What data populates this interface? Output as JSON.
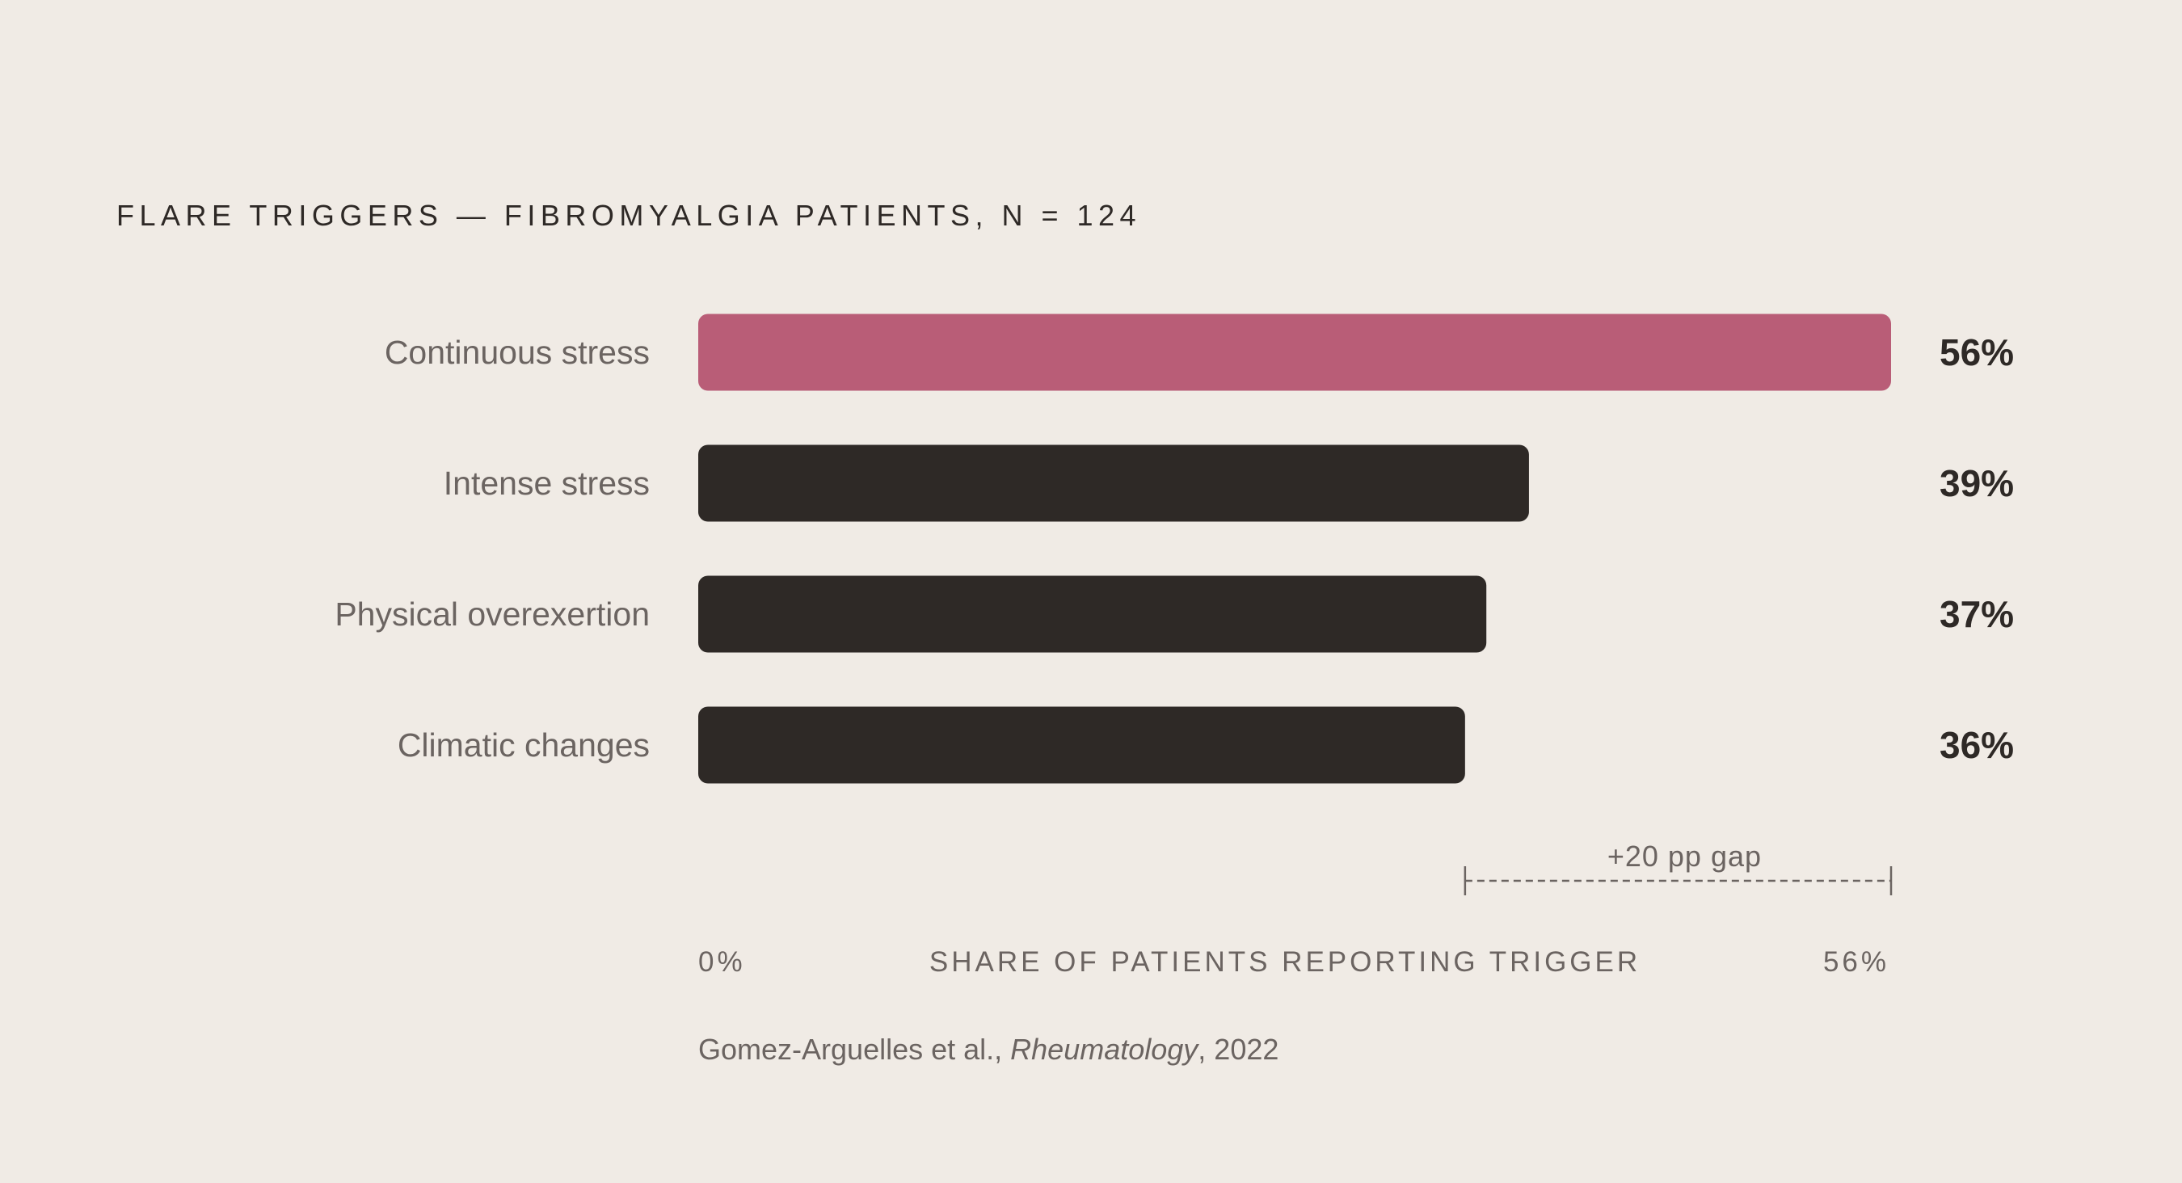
{
  "chart_data": {
    "type": "bar",
    "orientation": "horizontal",
    "title": "FLARE TRIGGERS — FIBROMYALGIA PATIENTS, N = 124",
    "categories": [
      "Continuous stress",
      "Intense stress",
      "Physical overexertion",
      "Climatic changes"
    ],
    "values": [
      56,
      39,
      37,
      36
    ],
    "value_labels": [
      "56%",
      "39%",
      "37%",
      "36%"
    ],
    "highlight_index": 0,
    "xlim": [
      0,
      56
    ],
    "xlabel": "SHARE OF PATIENTS REPORTING TRIGGER",
    "x_min_label": "0%",
    "x_max_label": "56%",
    "annotation": {
      "text": "+20 pp gap",
      "from_value": 36,
      "to_value": 56
    },
    "grid": false,
    "colors": {
      "highlight": "#b95d77",
      "bar": "#2e2926",
      "background": "#f0ebe5",
      "muted_text": "#6b6461",
      "dark_text": "#2e2926"
    }
  },
  "source": {
    "authors": "Gomez-Arguelles et al., ",
    "journal": "Rheumatology",
    "year_suffix": ", 2022"
  }
}
